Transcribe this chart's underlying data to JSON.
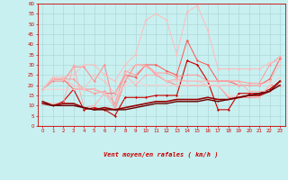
{
  "xlabel": "Vent moyen/en rafales ( km/h )",
  "bg_color": "#c8f0f0",
  "grid_color": "#b0d8d8",
  "x_ticks": [
    0,
    1,
    2,
    3,
    4,
    5,
    6,
    7,
    8,
    9,
    10,
    11,
    12,
    13,
    14,
    15,
    16,
    17,
    18,
    19,
    20,
    21,
    22,
    23
  ],
  "ylim": [
    0,
    60
  ],
  "yticks": [
    0,
    5,
    10,
    15,
    20,
    25,
    30,
    35,
    40,
    45,
    50,
    55,
    60
  ],
  "lines": [
    {
      "y": [
        12,
        10,
        12,
        18,
        8,
        9,
        8,
        5,
        14,
        14,
        14,
        15,
        15,
        15,
        32,
        30,
        22,
        8,
        8,
        16,
        16,
        16,
        18,
        22
      ],
      "color": "#cc0000",
      "lw": 0.8,
      "marker": "D",
      "ms": 1.5
    },
    {
      "y": [
        18,
        23,
        23,
        18,
        18,
        18,
        16,
        16,
        25,
        24,
        30,
        30,
        27,
        25,
        42,
        32,
        30,
        22,
        22,
        20,
        20,
        20,
        23,
        33
      ],
      "color": "#ff5555",
      "lw": 0.7,
      "marker": "D",
      "ms": 1.5
    },
    {
      "y": [
        18,
        22,
        22,
        29,
        29,
        22,
        30,
        8,
        22,
        30,
        30,
        25,
        22,
        20,
        20,
        20,
        20,
        20,
        14,
        14,
        14,
        14,
        20,
        20
      ],
      "color": "#ff8888",
      "lw": 0.7,
      "marker": "D",
      "ms": 1.5
    },
    {
      "y": [
        18,
        23,
        23,
        23,
        18,
        16,
        17,
        11,
        27,
        25,
        30,
        26,
        26,
        24,
        25,
        25,
        22,
        22,
        22,
        22,
        21,
        21,
        30,
        34
      ],
      "color": "#ff9999",
      "lw": 0.7,
      "marker": "D",
      "ms": 1.5
    },
    {
      "y": [
        12,
        11,
        11,
        30,
        9,
        10,
        16,
        9,
        25,
        20,
        25,
        25,
        22,
        23,
        22,
        22,
        22,
        22,
        22,
        22,
        17,
        17,
        17,
        22
      ],
      "color": "#ffaaaa",
      "lw": 0.6,
      "marker": "D",
      "ms": 1.3
    },
    {
      "y": [
        18,
        23,
        23,
        20,
        18,
        25,
        22,
        16,
        26,
        30,
        29,
        26,
        22,
        22,
        22,
        22,
        20,
        20,
        20,
        20,
        20,
        20,
        22,
        30
      ],
      "color": "#ffbbbb",
      "lw": 0.6,
      "marker": "D",
      "ms": 1.3
    },
    {
      "y": [
        18,
        18,
        18,
        18,
        18,
        18,
        16,
        14,
        20,
        22,
        20,
        20,
        20,
        20,
        20,
        20,
        20,
        20,
        15,
        15,
        15,
        14,
        20,
        24
      ],
      "color": "#ffcccc",
      "lw": 0.6,
      "marker": "D",
      "ms": 1.3
    },
    {
      "y": [
        18,
        24,
        24,
        25,
        30,
        30,
        25,
        22,
        30,
        35,
        52,
        55,
        52,
        35,
        56,
        59,
        47,
        28,
        28,
        28,
        28,
        28,
        31,
        32
      ],
      "color": "#ffbbbb",
      "lw": 0.7,
      "marker": "D",
      "ms": 1.5
    },
    {
      "y": [
        11,
        10,
        11,
        11,
        9,
        8,
        9,
        8,
        9,
        10,
        11,
        12,
        12,
        13,
        13,
        13,
        14,
        13,
        13,
        14,
        15,
        15,
        17,
        22
      ],
      "color": "#990000",
      "lw": 1.2,
      "marker": null,
      "ms": 0
    },
    {
      "y": [
        12,
        10,
        10,
        10,
        9,
        8,
        8,
        8,
        8,
        9,
        10,
        11,
        11,
        12,
        12,
        12,
        13,
        12,
        13,
        14,
        15,
        16,
        17,
        20
      ],
      "color": "#660000",
      "lw": 1.0,
      "marker": null,
      "ms": 0
    }
  ],
  "wind_arrows": [
    "→",
    "↘",
    "↘",
    "↓",
    "↑",
    "↘",
    "↗",
    "↘",
    "→",
    "→",
    "→",
    "→",
    "→",
    "↘",
    "↘",
    "↗",
    "↘",
    "↓",
    "→",
    "↗",
    "↘",
    "→",
    "↗",
    "↘"
  ]
}
